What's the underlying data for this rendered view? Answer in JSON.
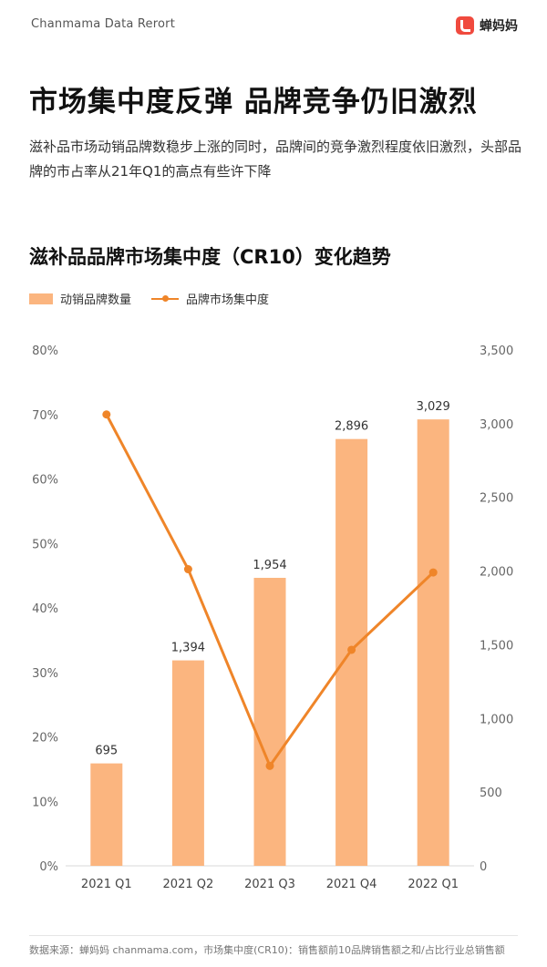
{
  "header": {
    "brand_en": "Chanmama Data Rerort",
    "logo_text": "蝉妈妈"
  },
  "headline": "市场集中度反弹 品牌竞争仍旧激烈",
  "description": "滋补品市场动销品牌数稳步上涨的同时，品牌间的竞争激烈程度依旧激烈，头部品牌的市占率从21年Q1的高点有些许下降",
  "chart_data": {
    "type": "bar",
    "title": "滋补品品牌市场集中度（CR10）变化趋势",
    "categories": [
      "2021 Q1",
      "2021 Q2",
      "2021 Q3",
      "2021 Q4",
      "2022 Q1"
    ],
    "series": [
      {
        "name": "动销品牌数量",
        "type": "bar",
        "axis": "right",
        "values": [
          695,
          1394,
          1954,
          2896,
          3029
        ],
        "color": "#fbb57f"
      },
      {
        "name": "品牌市场集中度",
        "type": "line",
        "axis": "left",
        "values": [
          0.7,
          0.46,
          0.155,
          0.335,
          0.455
        ],
        "color": "#ef8529"
      }
    ],
    "data_labels": [
      "695",
      "1,394",
      "1,954",
      "2,896",
      "3,029"
    ],
    "left_axis": {
      "ticks": [
        "0%",
        "10%",
        "20%",
        "30%",
        "40%",
        "50%",
        "60%",
        "70%",
        "80%"
      ],
      "min": 0,
      "max": 0.8
    },
    "right_axis": {
      "ticks": [
        "0",
        "500",
        "1,000",
        "1,500",
        "2,000",
        "2,500",
        "3,000",
        "3,500"
      ],
      "min": 0,
      "max": 3500
    },
    "legend_position": "top-left",
    "grid": false
  },
  "footer": {
    "source": "数据来源：蝉妈妈 chanmama.com，市场集中度(CR10)：销售额前10品牌销售额之和/占比行业总销售额"
  },
  "colors": {
    "bar": "#fbb57f",
    "line": "#ef8529",
    "logo": "#f04a3e"
  }
}
